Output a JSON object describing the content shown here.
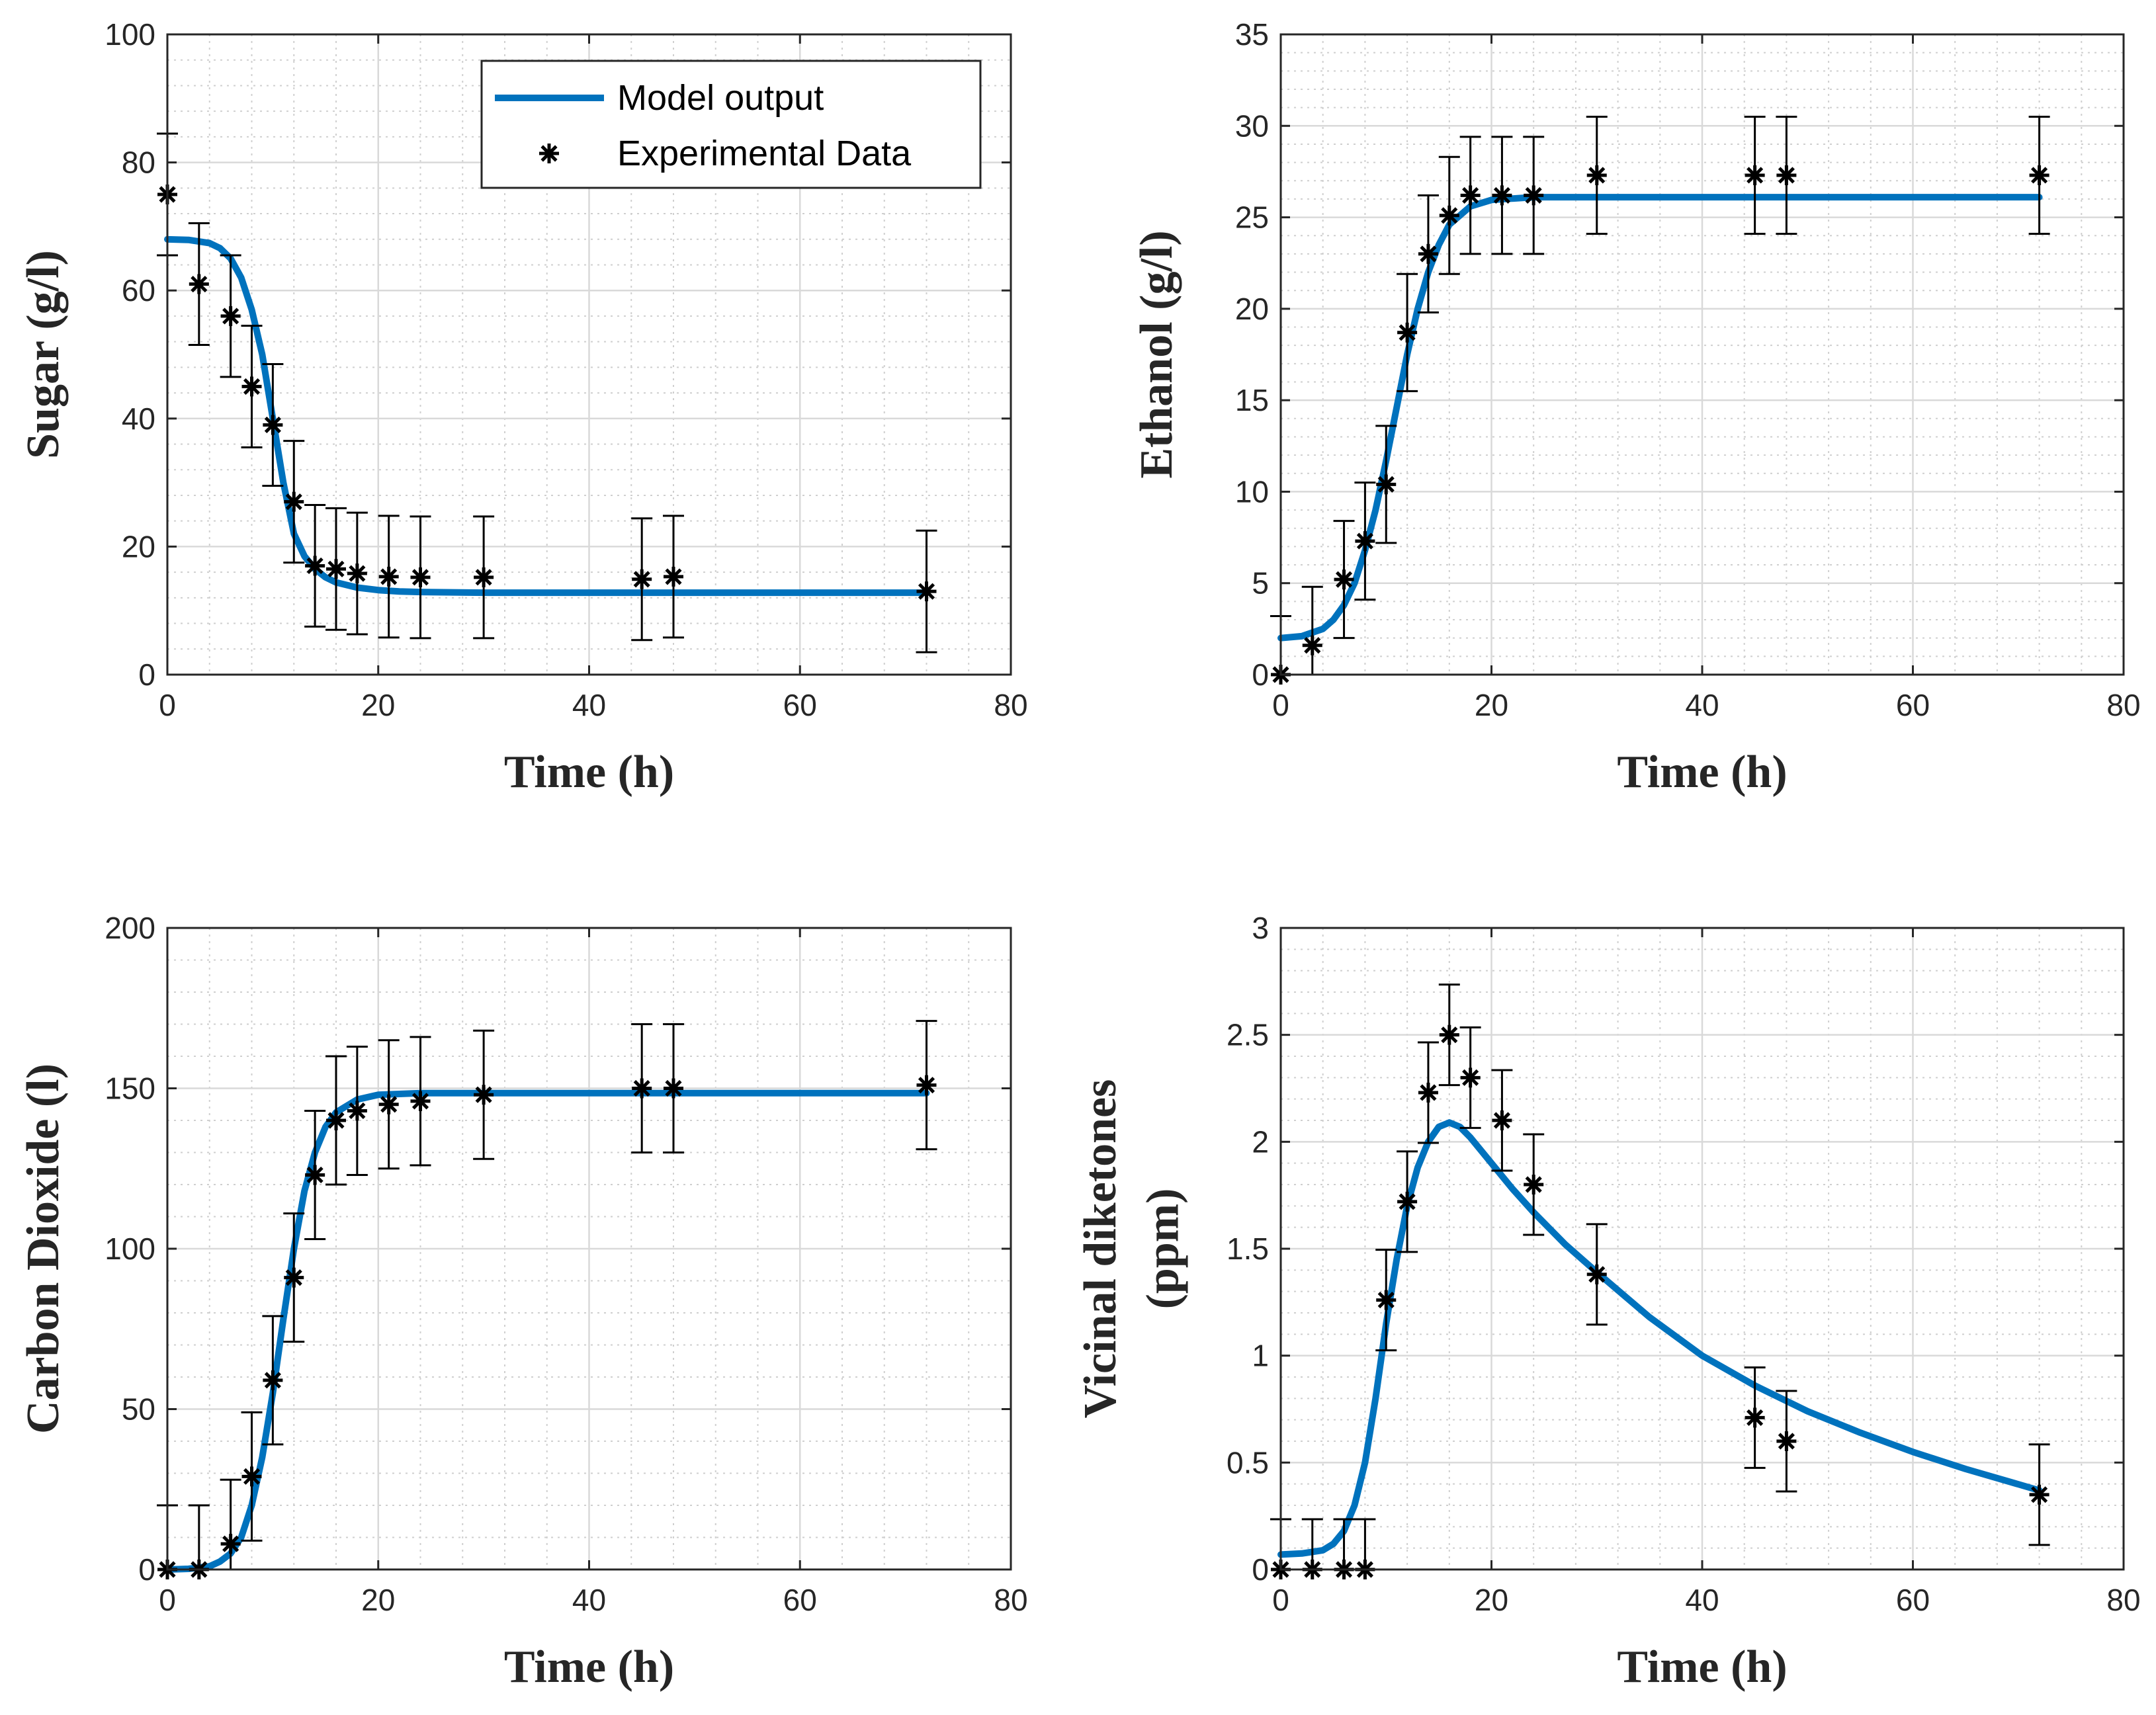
{
  "legend": {
    "model_label": "Model output",
    "exp_label": "Experimental Data",
    "location": "top-right of first panel"
  },
  "colors": {
    "model": "#0072BD",
    "data": "#000000",
    "axes": "#262626",
    "grid": "#d9d9d9"
  },
  "chart_data": [
    {
      "type": "line",
      "title": "",
      "xlabel": "Time (h)",
      "ylabel_lines": [
        "Sugar (g/l)"
      ],
      "xlim": [
        0,
        80
      ],
      "ylim": [
        0,
        100
      ],
      "xticks": [
        0,
        20,
        40,
        60,
        80
      ],
      "yticks": [
        0,
        20,
        40,
        60,
        80,
        100
      ],
      "xtick_labels": [
        "0",
        "20",
        "40",
        "60",
        "80"
      ],
      "ytick_labels": [
        "0",
        "20",
        "40",
        "60",
        "80",
        "100"
      ],
      "grid": true,
      "series": [
        {
          "name": "Model output",
          "kind": "line",
          "x": [
            0,
            2,
            4,
            5,
            6,
            7,
            8,
            9,
            10,
            11,
            12,
            13,
            14,
            15,
            16,
            18,
            20,
            22,
            24,
            30,
            40,
            60,
            72
          ],
          "y": [
            68,
            67.9,
            67.4,
            66.6,
            65,
            62,
            57,
            50,
            40,
            30,
            22,
            18.5,
            16.5,
            15.2,
            14.4,
            13.6,
            13.2,
            13.0,
            12.9,
            12.8,
            12.8,
            12.8,
            12.8
          ]
        },
        {
          "name": "Experimental Data",
          "kind": "errorbar",
          "x": [
            0,
            3,
            6,
            8,
            10,
            12,
            14,
            16,
            18,
            21,
            24,
            30,
            45,
            48,
            72
          ],
          "y": [
            75,
            61,
            56,
            45,
            39,
            27,
            17,
            16.5,
            15.8,
            15.3,
            15.2,
            15.2,
            14.9,
            15.3,
            13
          ],
          "err": [
            9.5,
            9.5,
            9.5,
            9.5,
            9.5,
            9.5,
            9.5,
            9.5,
            9.5,
            9.5,
            9.5,
            9.5,
            9.5,
            9.5,
            9.5
          ]
        }
      ],
      "show_legend": true
    },
    {
      "type": "line",
      "title": "",
      "xlabel": "Time (h)",
      "ylabel_lines": [
        "Ethanol (g/l)"
      ],
      "xlim": [
        0,
        80
      ],
      "ylim": [
        0,
        35
      ],
      "xticks": [
        0,
        20,
        40,
        60,
        80
      ],
      "yticks": [
        0,
        5,
        10,
        15,
        20,
        25,
        30,
        35
      ],
      "xtick_labels": [
        "0",
        "20",
        "40",
        "60",
        "80"
      ],
      "ytick_labels": [
        "0",
        "5",
        "10",
        "15",
        "20",
        "25",
        "30",
        "35"
      ],
      "grid": true,
      "series": [
        {
          "name": "Model output",
          "kind": "line",
          "x": [
            0,
            2,
            4,
            5,
            6,
            7,
            8,
            9,
            10,
            11,
            12,
            13,
            14,
            15,
            16,
            18,
            20,
            24,
            30,
            40,
            60,
            72
          ],
          "y": [
            2,
            2.1,
            2.5,
            3,
            3.8,
            5,
            6.8,
            9,
            11.7,
            14.6,
            17.5,
            20,
            22,
            23.5,
            24.6,
            25.6,
            25.95,
            26.1,
            26.1,
            26.1,
            26.1,
            26.1
          ]
        },
        {
          "name": "Experimental Data",
          "kind": "errorbar",
          "x": [
            0,
            3,
            6,
            8,
            10,
            12,
            14,
            16,
            18,
            21,
            24,
            30,
            45,
            48,
            72
          ],
          "y": [
            0,
            1.6,
            5.2,
            7.3,
            10.4,
            18.7,
            23,
            25.1,
            26.2,
            26.2,
            26.2,
            27.3,
            27.3,
            27.3,
            27.3
          ],
          "err": [
            3.2,
            3.2,
            3.2,
            3.2,
            3.2,
            3.2,
            3.2,
            3.2,
            3.2,
            3.2,
            3.2,
            3.2,
            3.2,
            3.2,
            3.2
          ]
        }
      ],
      "show_legend": false
    },
    {
      "type": "line",
      "title": "",
      "xlabel": "Time (h)",
      "ylabel_lines": [
        "Carbon Dioxide (l)"
      ],
      "xlim": [
        0,
        80
      ],
      "ylim": [
        0,
        200
      ],
      "xticks": [
        0,
        20,
        40,
        60,
        80
      ],
      "yticks": [
        0,
        50,
        100,
        150,
        200
      ],
      "xtick_labels": [
        "0",
        "20",
        "40",
        "60",
        "80"
      ],
      "ytick_labels": [
        "0",
        "50",
        "100",
        "150",
        "200"
      ],
      "grid": true,
      "series": [
        {
          "name": "Model output",
          "kind": "line",
          "x": [
            0,
            2,
            4,
            5,
            6,
            7,
            8,
            9,
            10,
            11,
            12,
            13,
            14,
            15,
            16,
            18,
            20,
            24,
            30,
            40,
            60,
            72
          ],
          "y": [
            0,
            0.2,
            1,
            2.5,
            5,
            10,
            20,
            35,
            55,
            78,
            100,
            118,
            130,
            138,
            142.5,
            146.5,
            148,
            148.5,
            148.5,
            148.5,
            148.5,
            148.5
          ]
        },
        {
          "name": "Experimental Data",
          "kind": "errorbar",
          "x": [
            0,
            3,
            6,
            8,
            10,
            12,
            14,
            16,
            18,
            21,
            24,
            30,
            45,
            48,
            72
          ],
          "y": [
            0,
            0,
            8,
            29,
            59,
            91,
            123,
            140,
            143,
            145,
            146,
            148,
            150,
            150,
            151
          ],
          "err": [
            20,
            20,
            20,
            20,
            20,
            20,
            20,
            20,
            20,
            20,
            20,
            20,
            20,
            20,
            20
          ]
        }
      ],
      "show_legend": false
    },
    {
      "type": "line",
      "title": "",
      "xlabel": "Time (h)",
      "ylabel_lines": [
        "Vicinal diketones",
        "(ppm)"
      ],
      "xlim": [
        0,
        80
      ],
      "ylim": [
        0,
        3
      ],
      "xticks": [
        0,
        20,
        40,
        60,
        80
      ],
      "yticks": [
        0,
        0.5,
        1,
        1.5,
        2,
        2.5,
        3
      ],
      "xtick_labels": [
        "0",
        "20",
        "40",
        "60",
        "80"
      ],
      "ytick_labels": [
        "0",
        "0.5",
        "1",
        "1.5",
        "2",
        "2.5",
        "3"
      ],
      "grid": true,
      "series": [
        {
          "name": "Model output",
          "kind": "line",
          "x": [
            0,
            2,
            4,
            5,
            6,
            7,
            8,
            9,
            10,
            11,
            12,
            13,
            14,
            15,
            16,
            17,
            18,
            20,
            22,
            24,
            27,
            30,
            35,
            40,
            45,
            50,
            55,
            60,
            65,
            72
          ],
          "y": [
            0.07,
            0.075,
            0.09,
            0.12,
            0.18,
            0.3,
            0.5,
            0.8,
            1.15,
            1.45,
            1.7,
            1.88,
            2.0,
            2.07,
            2.09,
            2.07,
            2.02,
            1.9,
            1.78,
            1.67,
            1.52,
            1.39,
            1.18,
            1.0,
            0.86,
            0.74,
            0.64,
            0.55,
            0.47,
            0.37
          ]
        },
        {
          "name": "Experimental Data",
          "kind": "errorbar",
          "x": [
            0,
            3,
            6,
            8,
            10,
            12,
            14,
            16,
            18,
            21,
            24,
            30,
            45,
            48,
            72
          ],
          "y": [
            0,
            0,
            0,
            0,
            1.26,
            1.72,
            2.23,
            2.5,
            2.3,
            2.1,
            1.8,
            1.38,
            0.71,
            0.6,
            0.35
          ],
          "err": [
            0.235,
            0.235,
            0.235,
            0.235,
            0.235,
            0.235,
            0.235,
            0.235,
            0.235,
            0.235,
            0.235,
            0.235,
            0.235,
            0.235,
            0.235
          ]
        }
      ],
      "show_legend": false
    }
  ]
}
